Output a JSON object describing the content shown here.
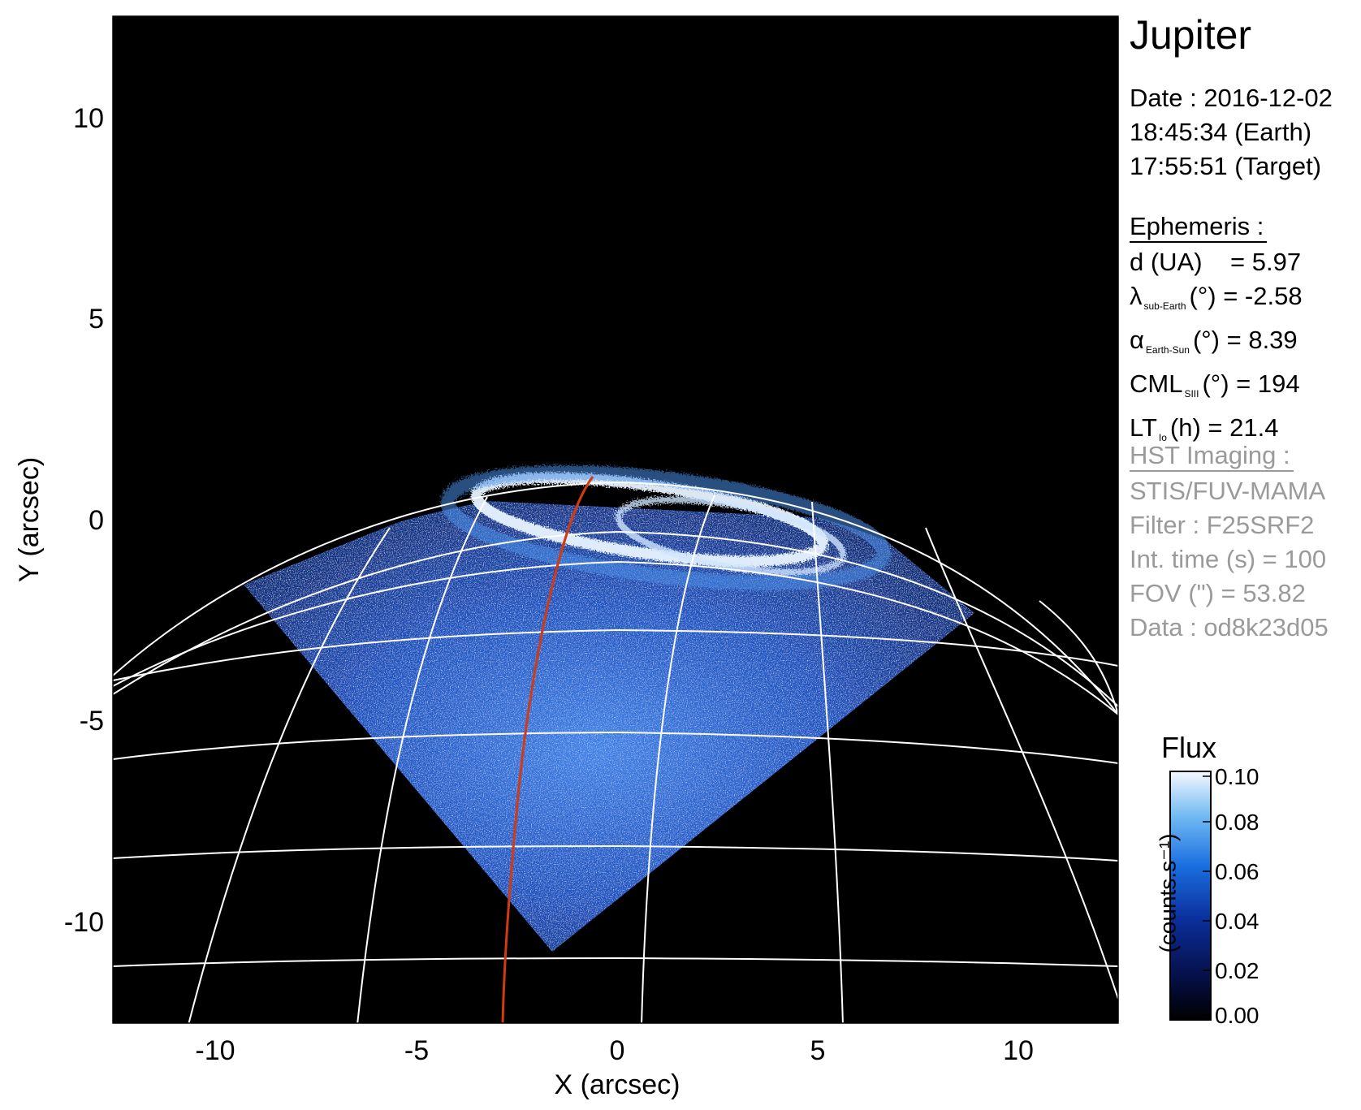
{
  "title": "Jupiter",
  "date": {
    "line1": "Date : 2016-12-02",
    "line2": "18:45:34 (Earth)",
    "line3": "17:55:51 (Target)"
  },
  "ephemeris": {
    "header": "Ephemeris :",
    "d_ua": "d (UA)    = 5.97",
    "lambda_sym": "λ",
    "lambda_sub": "sub-Earth",
    "lambda_rest": "(°) = -2.58",
    "alpha_sym": "α",
    "alpha_sub": "Earth-Sun",
    "alpha_rest": "(°) = 8.39",
    "cml_sym": "CML",
    "cml_sub": "SIII",
    "cml_rest": "(°) = 194",
    "lt_sym": "LT",
    "lt_sub": "Io",
    "lt_rest": "(h) = 21.4"
  },
  "hst": {
    "header": "HST Imaging :",
    "instrument": "STIS/FUV-MAMA",
    "filter": "Filter : F25SRF2",
    "int_time": "Int. time (s) = 100",
    "fov": "FOV (\") = 53.82",
    "data": "Data : od8k23d05"
  },
  "axes": {
    "xlabel": "X (arcsec)",
    "ylabel": "Y (arcsec)",
    "xticks": [
      -10,
      -5,
      0,
      5,
      10
    ],
    "yticks": [
      10,
      5,
      0,
      -5,
      -10
    ],
    "xlim": [
      -12.5,
      12.5
    ],
    "ylim": [
      -12.5,
      12.5
    ]
  },
  "colorbar": {
    "title": "Flux",
    "label": "(counts.s⁻¹)",
    "ticks": [
      "0.10",
      "0.08",
      "0.06",
      "0.04",
      "0.02",
      "0.00"
    ]
  },
  "colors": {
    "background": "#000000",
    "grid": "#ffffff",
    "meridian_track": "#d23a12",
    "aurora": "#e6f2ff",
    "disk_blue": "#1e5bd6"
  }
}
